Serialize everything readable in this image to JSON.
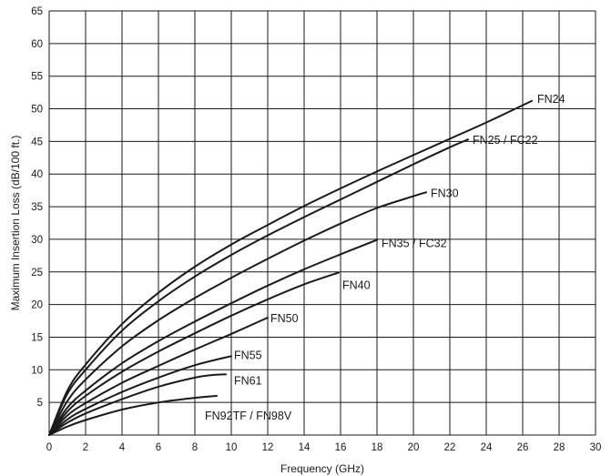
{
  "chart_data": {
    "type": "line",
    "title": "",
    "xlabel": "Frequency (GHz)",
    "ylabel": "Maximum Insertion Loss (dB/100 ft.)",
    "xlim": [
      0,
      30
    ],
    "ylim": [
      0,
      65
    ],
    "xticks": [
      "0",
      "2",
      "4",
      "6",
      "8",
      "10",
      "12",
      "14",
      "16",
      "18",
      "20",
      "22",
      "24",
      "26",
      "28",
      "30"
    ],
    "yticks": [
      "5",
      "10",
      "15",
      "20",
      "25",
      "30",
      "35",
      "40",
      "45",
      "50",
      "55",
      "60",
      "65"
    ],
    "grid": true,
    "legend": "none",
    "series": [
      {
        "name": "FN24",
        "x": [
          0,
          1,
          2,
          4,
          6,
          8,
          10,
          12,
          14,
          16,
          18,
          20,
          22,
          24,
          26.5
        ],
        "y": [
          0,
          6.8,
          10.8,
          17.0,
          21.8,
          25.8,
          29.2,
          32.2,
          35.1,
          37.8,
          40.4,
          42.9,
          45.4,
          47.9,
          51.2
        ]
      },
      {
        "name": "FN25 / FC22",
        "x": [
          0,
          1,
          2,
          4,
          6,
          8,
          10,
          12,
          14,
          16,
          18,
          20,
          22,
          23
        ],
        "y": [
          0,
          6.3,
          10.0,
          16.0,
          20.5,
          24.3,
          27.6,
          30.6,
          33.4,
          36.1,
          38.8,
          41.5,
          44.1,
          45.3
        ]
      },
      {
        "name": "FN30",
        "x": [
          0,
          1,
          2,
          4,
          6,
          8,
          10,
          12,
          14,
          16,
          18,
          20,
          20.7
        ],
        "y": [
          0,
          5.2,
          8.5,
          13.6,
          17.6,
          21.0,
          24.1,
          27.0,
          29.8,
          32.4,
          34.8,
          36.6,
          37.2
        ]
      },
      {
        "name": "FN35 / FC32",
        "x": [
          0,
          1,
          2,
          4,
          6,
          8,
          10,
          12,
          14,
          16,
          18
        ],
        "y": [
          0,
          4.2,
          6.8,
          11.0,
          14.4,
          17.4,
          20.2,
          22.9,
          25.4,
          27.7,
          29.9
        ]
      },
      {
        "name": "FN40",
        "x": [
          0,
          1,
          2,
          4,
          6,
          8,
          10,
          12,
          14,
          15.9
        ],
        "y": [
          0,
          3.6,
          6.0,
          9.7,
          12.8,
          15.6,
          18.3,
          20.8,
          23.1,
          24.9
        ]
      },
      {
        "name": "FN50",
        "x": [
          0,
          1,
          2,
          4,
          6,
          8,
          10,
          12
        ],
        "y": [
          0,
          3.0,
          4.9,
          8.0,
          10.6,
          13.1,
          15.5,
          18.0
        ]
      },
      {
        "name": "FN55",
        "x": [
          0,
          1,
          2,
          4,
          6,
          8,
          10
        ],
        "y": [
          0,
          2.4,
          4.0,
          6.6,
          8.8,
          10.7,
          12.1
        ]
      },
      {
        "name": "FN61",
        "x": [
          0,
          1,
          2,
          4,
          6,
          8,
          9,
          9.7
        ],
        "y": [
          0,
          1.9,
          3.3,
          5.5,
          7.4,
          8.8,
          9.2,
          9.3
        ]
      },
      {
        "name": "FN92TF / FN98V",
        "x": [
          0,
          1,
          2,
          4,
          6,
          8,
          9.2
        ],
        "y": [
          0,
          1.3,
          2.3,
          3.9,
          5.0,
          5.7,
          6.0
        ]
      }
    ]
  }
}
